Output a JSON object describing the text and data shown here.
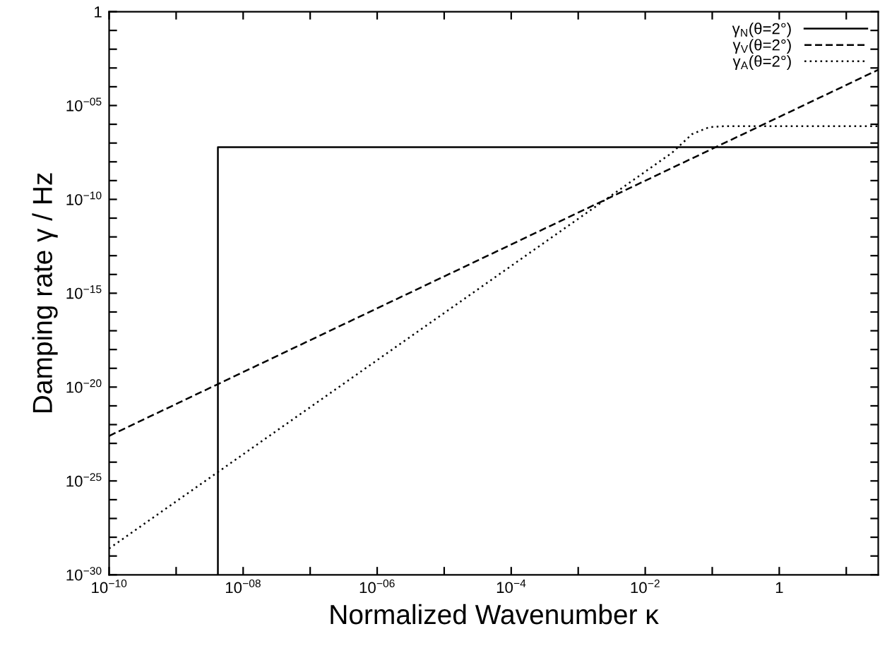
{
  "chart_data": {
    "type": "line",
    "xlabel": "Normalized Wavenumber κ",
    "ylabel": "Damping rate γ / Hz",
    "log": "xy",
    "grid": false,
    "legend": "top right",
    "marker": "none",
    "xlim": [
      1e-10,
      30
    ],
    "ylim": [
      1e-30,
      1
    ],
    "xticks": [
      {
        "value": 1e-10,
        "label": "10$^{−10}$"
      },
      {
        "value": 1e-09,
        "label": null
      },
      {
        "value": 1e-08,
        "label": "10$^{−08}$"
      },
      {
        "value": 1e-07,
        "label": null
      },
      {
        "value": 1e-06,
        "label": "10$^{−06}$"
      },
      {
        "value": 1e-05,
        "label": null
      },
      {
        "value": 0.0001,
        "label": "10$^{−4}$"
      },
      {
        "value": 0.001,
        "label": null
      },
      {
        "value": 0.01,
        "label": "10$^{−2}$"
      },
      {
        "value": 0.1,
        "label": null
      },
      1,
      {
        "value": 10,
        "label": null
      }
    ],
    "yticks": [
      {
        "value": 1e-30,
        "label": "10$^{−30}$"
      },
      {
        "value": 1e-29,
        "label": null
      },
      {
        "value": 1e-28,
        "label": null
      },
      {
        "value": 1e-27,
        "label": null
      },
      {
        "value": 1e-26,
        "label": null
      },
      {
        "value": 1e-25,
        "label": "10$^{−25}$"
      },
      {
        "value": 1e-24,
        "label": null
      },
      {
        "value": 1e-23,
        "label": null
      },
      {
        "value": 1e-22,
        "label": null
      },
      {
        "value": 1e-21,
        "label": null
      },
      {
        "value": 1e-20,
        "label": "10$^{−20}$"
      },
      {
        "value": 1e-19,
        "label": null
      },
      {
        "value": 1e-18,
        "label": null
      },
      {
        "value": 1e-17,
        "label": null
      },
      {
        "value": 1e-16,
        "label": null
      },
      {
        "value": 1e-15,
        "label": "10$^{−15}$"
      },
      {
        "value": 1e-14,
        "label": null
      },
      {
        "value": 1e-13,
        "label": null
      },
      {
        "value": 1e-12,
        "label": null
      },
      {
        "value": 1e-11,
        "label": null
      },
      {
        "value": 1e-10,
        "label": "10$^{−10}$"
      },
      {
        "value": 1e-09,
        "label": null
      },
      {
        "value": 1e-08,
        "label": null
      },
      {
        "value": 1e-07,
        "label": null
      },
      {
        "value": 1e-06,
        "label": null
      },
      {
        "value": 1e-05,
        "label": "10$^{−05}$"
      },
      {
        "value": 0.0001,
        "label": null
      },
      {
        "value": 0.001,
        "label": null
      },
      {
        "value": 0.01,
        "label": null
      },
      {
        "value": 0.1,
        "label": null
      },
      1
    ],
    "series": [
      {
        "name": "γ$_{N}$(θ=2°)",
        "color": "#000000",
        "line_style": "solid",
        "x": [
          4.2e-09,
          4.2e-09,
          30
        ],
        "values": [
          1e-30,
          6e-08,
          6e-08
        ]
      },
      {
        "name": "γ$_{V}$(θ=2°)",
        "color": "#000000",
        "line_style": "dashed",
        "x": [
          1e-10,
          30
        ],
        "values": [
          2.5e-23,
          0.0008
        ]
      },
      {
        "name": "γ$_{A}$(θ=2°)",
        "color": "#000000",
        "line_style": "dotted",
        "x": [
          1e-10,
          0.0016,
          0.025,
          0.05,
          0.09,
          0.16,
          30
        ],
        "values": [
          2.5e-29,
          3e-11,
          3e-08,
          3e-07,
          7e-07,
          8e-07,
          8e-07
        ]
      }
    ]
  }
}
